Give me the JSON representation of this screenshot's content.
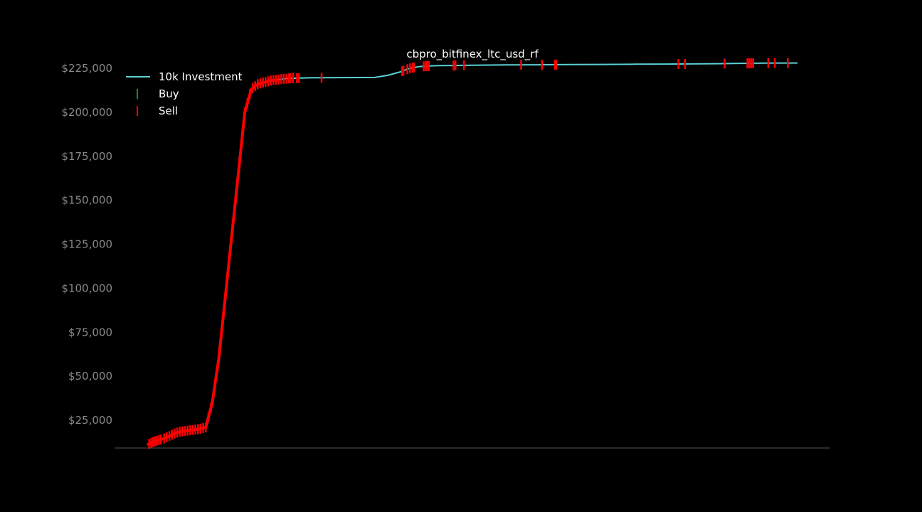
{
  "chart_data": {
    "type": "line",
    "title": "cbpro_bitfinex_ltc_usd_rf",
    "xlabel": "",
    "ylabel": "",
    "x_tick_labels": [],
    "xlim": [
      0,
      100
    ],
    "ylim": [
      9000,
      237000
    ],
    "y_ticks": [
      25000,
      50000,
      75000,
      100000,
      125000,
      150000,
      175000,
      200000,
      225000
    ],
    "y_tick_labels": [
      "$25,000",
      "$50,000",
      "$75,000",
      "$100,000",
      "$125,000",
      "$150,000",
      "$175,000",
      "$200,000",
      "$225,000"
    ],
    "grid": false,
    "legend": {
      "placement": "top-left",
      "entries": [
        "10k Investment",
        "Buy",
        "Sell"
      ]
    },
    "colors": {
      "investment": "#5ad1d6",
      "buy": "#1a8f1a",
      "sell": "#ff0000",
      "background": "#000000",
      "axis": "#555555"
    },
    "series": [
      {
        "name": "10k Investment",
        "x": [
          0,
          0.8,
          1.6,
          2.5,
          3.4,
          4.2,
          5.0,
          6.0,
          7.0,
          8.0,
          9.0,
          10.0,
          11.0,
          12.0,
          13.0,
          14.0,
          15.0,
          16.0,
          17.0,
          18.0,
          18.5,
          19.0,
          20.0,
          21.0,
          22.0,
          23.0,
          24.0,
          25.0,
          30.0,
          35.0,
          37.0,
          38.0,
          39.0,
          40.0,
          41.0,
          42.0,
          43.0,
          44.0,
          45.0,
          50.0,
          55.0,
          60.0,
          65.0,
          70.0,
          75.0,
          80.0,
          85.0,
          90.0,
          95.0,
          100.0
        ],
        "y": [
          11000,
          12500,
          13500,
          14500,
          16000,
          17500,
          18500,
          19000,
          19500,
          20000,
          21000,
          35000,
          60000,
          95000,
          130000,
          165000,
          200000,
          213000,
          216000,
          217000,
          217500,
          218000,
          218500,
          219000,
          219300,
          219400,
          219500,
          219600,
          219700,
          219800,
          221000,
          222000,
          223000,
          224500,
          225500,
          226000,
          226200,
          226400,
          226500,
          226700,
          226900,
          227000,
          227100,
          227200,
          227300,
          227400,
          227500,
          227700,
          227900,
          228000
        ]
      }
    ],
    "sell_markers_x": [
      0.3,
      0.6,
      0.9,
      1.2,
      1.5,
      1.8,
      2.1,
      2.6,
      3.0,
      3.4,
      3.8,
      4.2,
      4.6,
      5.0,
      5.4,
      5.8,
      6.2,
      6.6,
      7.0,
      7.4,
      7.8,
      8.2,
      8.6,
      9.0,
      9.4,
      9.8,
      10.2,
      10.6,
      11.0,
      11.4,
      11.8,
      12.2,
      12.6,
      13.0,
      13.4,
      13.8,
      14.2,
      14.6,
      15.0,
      15.4,
      15.8,
      16.2,
      16.6,
      17.0,
      17.4,
      17.8,
      18.2,
      18.6,
      19.0,
      19.4,
      19.8,
      20.2,
      20.6,
      21.0,
      21.4,
      21.8,
      22.0,
      22.4,
      23.0,
      23.3,
      26.8,
      39.2,
      39.4,
      40.0,
      40.4,
      40.8,
      41.0,
      42.5,
      42.8,
      43.0,
      43.3,
      47.1,
      47.4,
      48.7,
      57.5,
      60.7,
      62.7,
      62.9,
      81.7,
      82.7,
      88.8,
      92.3,
      92.6,
      92.9,
      93.2,
      95.5,
      96.5,
      98.5
    ]
  }
}
